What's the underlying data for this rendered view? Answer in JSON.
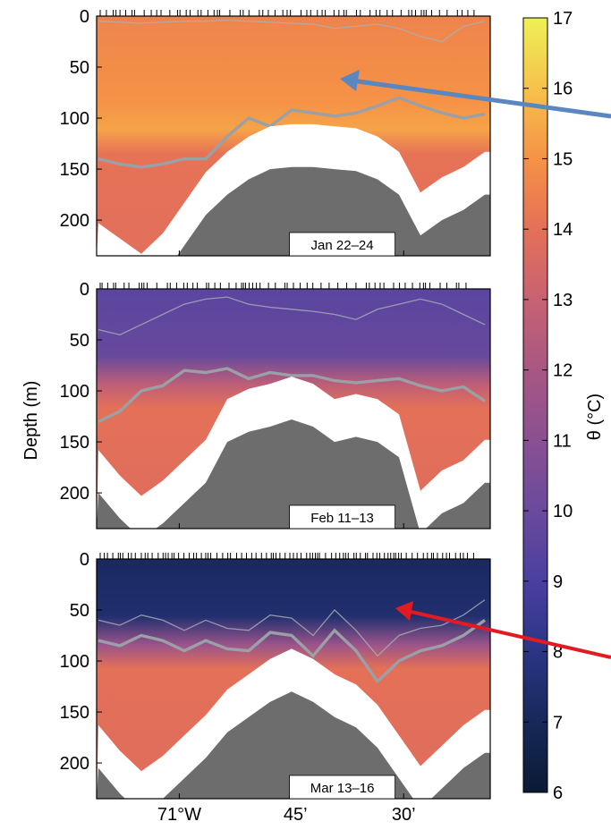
{
  "chart_data": {
    "type": "heatmap",
    "ylabel": "Depth (m)",
    "ylim": [
      0,
      235
    ],
    "yticks": [
      0,
      50,
      100,
      150,
      200
    ],
    "xtick_labels": [
      "71°W",
      "45’",
      "30’"
    ],
    "colorbar": {
      "label": "θ (°C)",
      "range": [
        6,
        17
      ],
      "ticks": [
        6,
        7,
        8,
        9,
        10,
        11,
        12,
        13,
        14,
        15,
        16,
        17
      ],
      "stops": [
        {
          "value": 6,
          "color": "#0a1b33"
        },
        {
          "value": 7,
          "color": "#17285a"
        },
        {
          "value": 8,
          "color": "#2a3584"
        },
        {
          "value": 9,
          "color": "#4a3fa0"
        },
        {
          "value": 10,
          "color": "#6a4a9d"
        },
        {
          "value": 11,
          "color": "#8a5092"
        },
        {
          "value": 12,
          "color": "#a85783"
        },
        {
          "value": 13,
          "color": "#c76272"
        },
        {
          "value": 14,
          "color": "#e47058"
        },
        {
          "value": 15,
          "color": "#f59246"
        },
        {
          "value": 16,
          "color": "#f6c24c"
        },
        {
          "value": 17,
          "color": "#eef056"
        }
      ]
    },
    "panels": [
      {
        "label": "Jan 22–24",
        "surface_temp": 14.6,
        "deep_temp": 14.1,
        "contour_depths": [
          140,
          145,
          148,
          145,
          140,
          140,
          118,
          100,
          108,
          92,
          95,
          98,
          95,
          88,
          80,
          88,
          95,
          100,
          96
        ],
        "shallow_contour": [
          5,
          6,
          7,
          6,
          5,
          5,
          4,
          5,
          6,
          7,
          8,
          12,
          10,
          8,
          12,
          20,
          25,
          10,
          5
        ],
        "seafloor_depths": [
          245,
          260,
          275,
          255,
          225,
          195,
          175,
          160,
          150,
          148,
          148,
          150,
          152,
          160,
          175,
          215,
          200,
          190,
          175
        ]
      },
      {
        "label": "Feb 11–13",
        "surface_temp": 9.5,
        "deep_temp": 14.0,
        "contour_depths": [
          130,
          120,
          100,
          95,
          80,
          82,
          78,
          88,
          82,
          85,
          85,
          90,
          92,
          90,
          88,
          95,
          100,
          96,
          110
        ],
        "shallow_contour": [
          40,
          45,
          35,
          25,
          15,
          10,
          8,
          15,
          18,
          20,
          22,
          25,
          30,
          20,
          15,
          10,
          15,
          25,
          35
        ],
        "seafloor_depths": [
          200,
          225,
          245,
          230,
          210,
          190,
          150,
          140,
          135,
          128,
          135,
          150,
          145,
          150,
          165,
          240,
          220,
          210,
          190
        ]
      },
      {
        "label": "Mar 13–16",
        "surface_temp": 7.1,
        "deep_temp": 14.0,
        "contour_depths": [
          80,
          85,
          75,
          80,
          90,
          80,
          88,
          90,
          72,
          75,
          95,
          70,
          90,
          120,
          100,
          90,
          85,
          75,
          60
        ],
        "shallow_contour": [
          60,
          65,
          55,
          60,
          70,
          60,
          68,
          70,
          55,
          58,
          75,
          50,
          70,
          95,
          75,
          68,
          65,
          55,
          40
        ],
        "seafloor_depths": [
          205,
          230,
          250,
          235,
          215,
          195,
          170,
          155,
          140,
          130,
          140,
          155,
          165,
          185,
          215,
          245,
          225,
          205,
          190
        ]
      }
    ]
  }
}
